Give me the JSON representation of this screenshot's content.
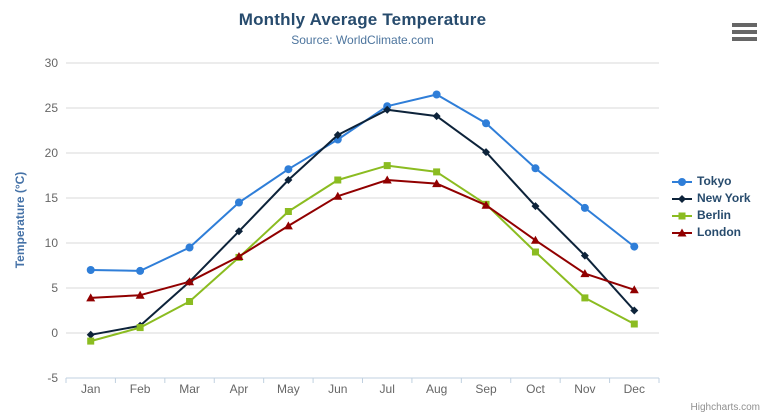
{
  "header": {
    "title": "Monthly Average Temperature",
    "subtitle": "Source: WorldClimate.com"
  },
  "credits": {
    "label": "Highcharts.com"
  },
  "icons": {
    "context_menu": "hamburger-icon"
  },
  "palette": {
    "grid_line": "#d8d8d8",
    "axis_line": "#c0d0e0",
    "tick": "#c0d0e0",
    "axis_label": "#666666",
    "title": "#274b6d",
    "subtitle": "#4d759e",
    "y_axis_title": "#4572a7",
    "legend_text": "#274b6d",
    "credits_text": "#909090",
    "menu_icon": "#666666"
  },
  "chart_data": {
    "type": "line",
    "title": "Monthly Average Temperature",
    "subtitle": "Source: WorldClimate.com",
    "categories": [
      "Jan",
      "Feb",
      "Mar",
      "Apr",
      "May",
      "Jun",
      "Jul",
      "Aug",
      "Sep",
      "Oct",
      "Nov",
      "Dec"
    ],
    "series": [
      {
        "name": "Tokyo",
        "color": "#2f7ed8",
        "marker": "circle",
        "values": [
          7.0,
          6.9,
          9.5,
          14.5,
          18.2,
          21.5,
          25.2,
          26.5,
          23.3,
          18.3,
          13.9,
          9.6
        ]
      },
      {
        "name": "New York",
        "color": "#0d233a",
        "marker": "diamond",
        "values": [
          -0.2,
          0.8,
          5.7,
          11.3,
          17.0,
          22.0,
          24.8,
          24.1,
          20.1,
          14.1,
          8.6,
          2.5
        ]
      },
      {
        "name": "Berlin",
        "color": "#8bbc21",
        "marker": "square",
        "values": [
          -0.9,
          0.6,
          3.5,
          8.4,
          13.5,
          17.0,
          18.6,
          17.9,
          14.3,
          9.0,
          3.9,
          1.0
        ]
      },
      {
        "name": "London",
        "color": "#910000",
        "marker": "triangle",
        "values": [
          3.9,
          4.2,
          5.7,
          8.5,
          11.9,
          15.2,
          17.0,
          16.6,
          14.2,
          10.3,
          6.6,
          4.8
        ]
      }
    ],
    "xlabel": "",
    "ylabel": "Temperature (°C)",
    "ylim": [
      -5,
      30
    ],
    "yticks": [
      -5,
      0,
      5,
      10,
      15,
      20,
      25,
      30
    ],
    "grid": "horizontal",
    "legend_position": "right"
  }
}
